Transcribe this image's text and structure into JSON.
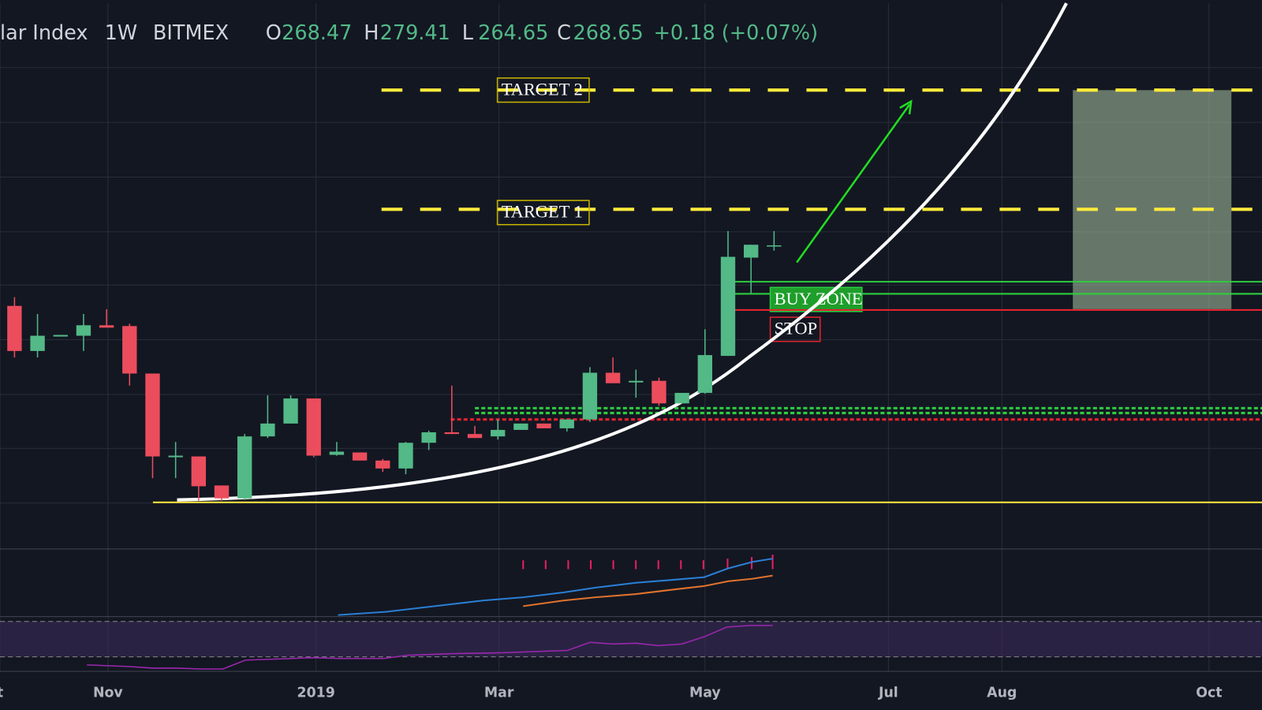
{
  "header": {
    "symbol": "lar Index",
    "interval": "1W",
    "exchange": "BITMEX",
    "ohlc": [
      {
        "key": "O",
        "value": "268.47"
      },
      {
        "key": "H",
        "value": "279.41"
      },
      {
        "key": "L",
        "value": "264.65"
      },
      {
        "key": "C",
        "value": "268.65"
      }
    ],
    "change": "+0.18 (+0.07%)"
  },
  "chart_data": {
    "type": "candlestick",
    "x": [
      0,
      1,
      2,
      3,
      4,
      5,
      6,
      7,
      8,
      9,
      10,
      11,
      12,
      13,
      14,
      15,
      16,
      17,
      18,
      19,
      20,
      21,
      22,
      23,
      24,
      25,
      26,
      27,
      28,
      29,
      30,
      31,
      32,
      33
    ],
    "open": [
      223.0,
      189.0,
      199.9,
      200.5,
      208.4,
      207.8,
      172.0,
      108.9,
      109.5,
      87.6,
      77.9,
      124.6,
      134.3,
      153.2,
      110.7,
      112.5,
      106.4,
      100.4,
      119.8,
      127.7,
      126.4,
      124.6,
      129.5,
      134.3,
      130.7,
      137.4,
      172.6,
      165.3,
      166.5,
      149.5,
      157.4,
      185.3,
      259.4,
      268.47
    ],
    "high": [
      229.6,
      216.9,
      201.1,
      216.9,
      220.5,
      209.6,
      172.0,
      120.4,
      109.5,
      87.6,
      126.4,
      155.6,
      155.6,
      153.2,
      120.4,
      112.5,
      107.6,
      120.4,
      128.9,
      162.9,
      132.5,
      137.4,
      134.3,
      134.3,
      137.4,
      176.8,
      184.1,
      175.0,
      168.9,
      157.4,
      205.4,
      279.4,
      269.1,
      279.41
    ],
    "low": [
      184.1,
      184.1,
      199.9,
      189.0,
      206.6,
      162.9,
      93.1,
      93.1,
      76.1,
      76.1,
      76.7,
      123.4,
      134.3,
      108.9,
      110.1,
      106.4,
      97.9,
      96.1,
      114.3,
      126.4,
      123.4,
      122.2,
      129.5,
      130.7,
      128.3,
      135.6,
      164.7,
      153.8,
      147.7,
      149.5,
      156.8,
      185.3,
      232.7,
      264.65
    ],
    "close": [
      189.0,
      200.5,
      201.1,
      208.4,
      206.6,
      172.0,
      109.5,
      110.1,
      87.0,
      77.9,
      124.6,
      134.3,
      153.2,
      110.1,
      113.1,
      106.4,
      100.4,
      119.8,
      127.7,
      126.4,
      123.4,
      129.5,
      134.3,
      130.7,
      137.4,
      172.6,
      164.7,
      166.5,
      149.5,
      157.4,
      185.9,
      260.0,
      269.1,
      268.65
    ],
    "up_color": "#53b987",
    "down_color": "#eb4d5c",
    "xlim": [
      -0.63,
      54.2
    ],
    "xticks": [
      {
        "value": -0.63,
        "label": "t"
      },
      {
        "value": 4.06,
        "label": "Nov"
      },
      {
        "value": 13.1,
        "label": "2019"
      },
      {
        "value": 21.05,
        "label": "Mar"
      },
      {
        "value": 30.0,
        "label": "May"
      },
      {
        "value": 37.97,
        "label": "Jul"
      },
      {
        "value": 42.9,
        "label": "Aug"
      },
      {
        "value": 51.9,
        "label": "Oct"
      }
    ],
    "ylim": [
      39.7,
      451.2
    ],
    "levels": [
      {
        "value": 385.7,
        "color": "#ffeb3b",
        "style": "dashed",
        "label": "TARGET 2"
      },
      {
        "value": 295.8,
        "color": "#ffeb3b",
        "style": "dashed",
        "label": "TARGET 1"
      },
      {
        "value": 241.2,
        "color": "#2ecc40",
        "style": "solid"
      },
      {
        "value": 232.1,
        "color": "#2ecc40",
        "style": "solid",
        "label": "BUY ZONE"
      },
      {
        "value": 219.9,
        "color": "#e0242f",
        "style": "solid",
        "label": "STOP"
      },
      {
        "value": 145.9,
        "color": "#2ecc40",
        "style": "dotted"
      },
      {
        "value": 142.2,
        "color": "#2ecc40",
        "style": "dotted"
      },
      {
        "value": 137.4,
        "color": "#e0242f",
        "style": "dotted"
      },
      {
        "value": 74.9,
        "color": "#ffeb3b",
        "style": "solid"
      }
    ]
  }
}
